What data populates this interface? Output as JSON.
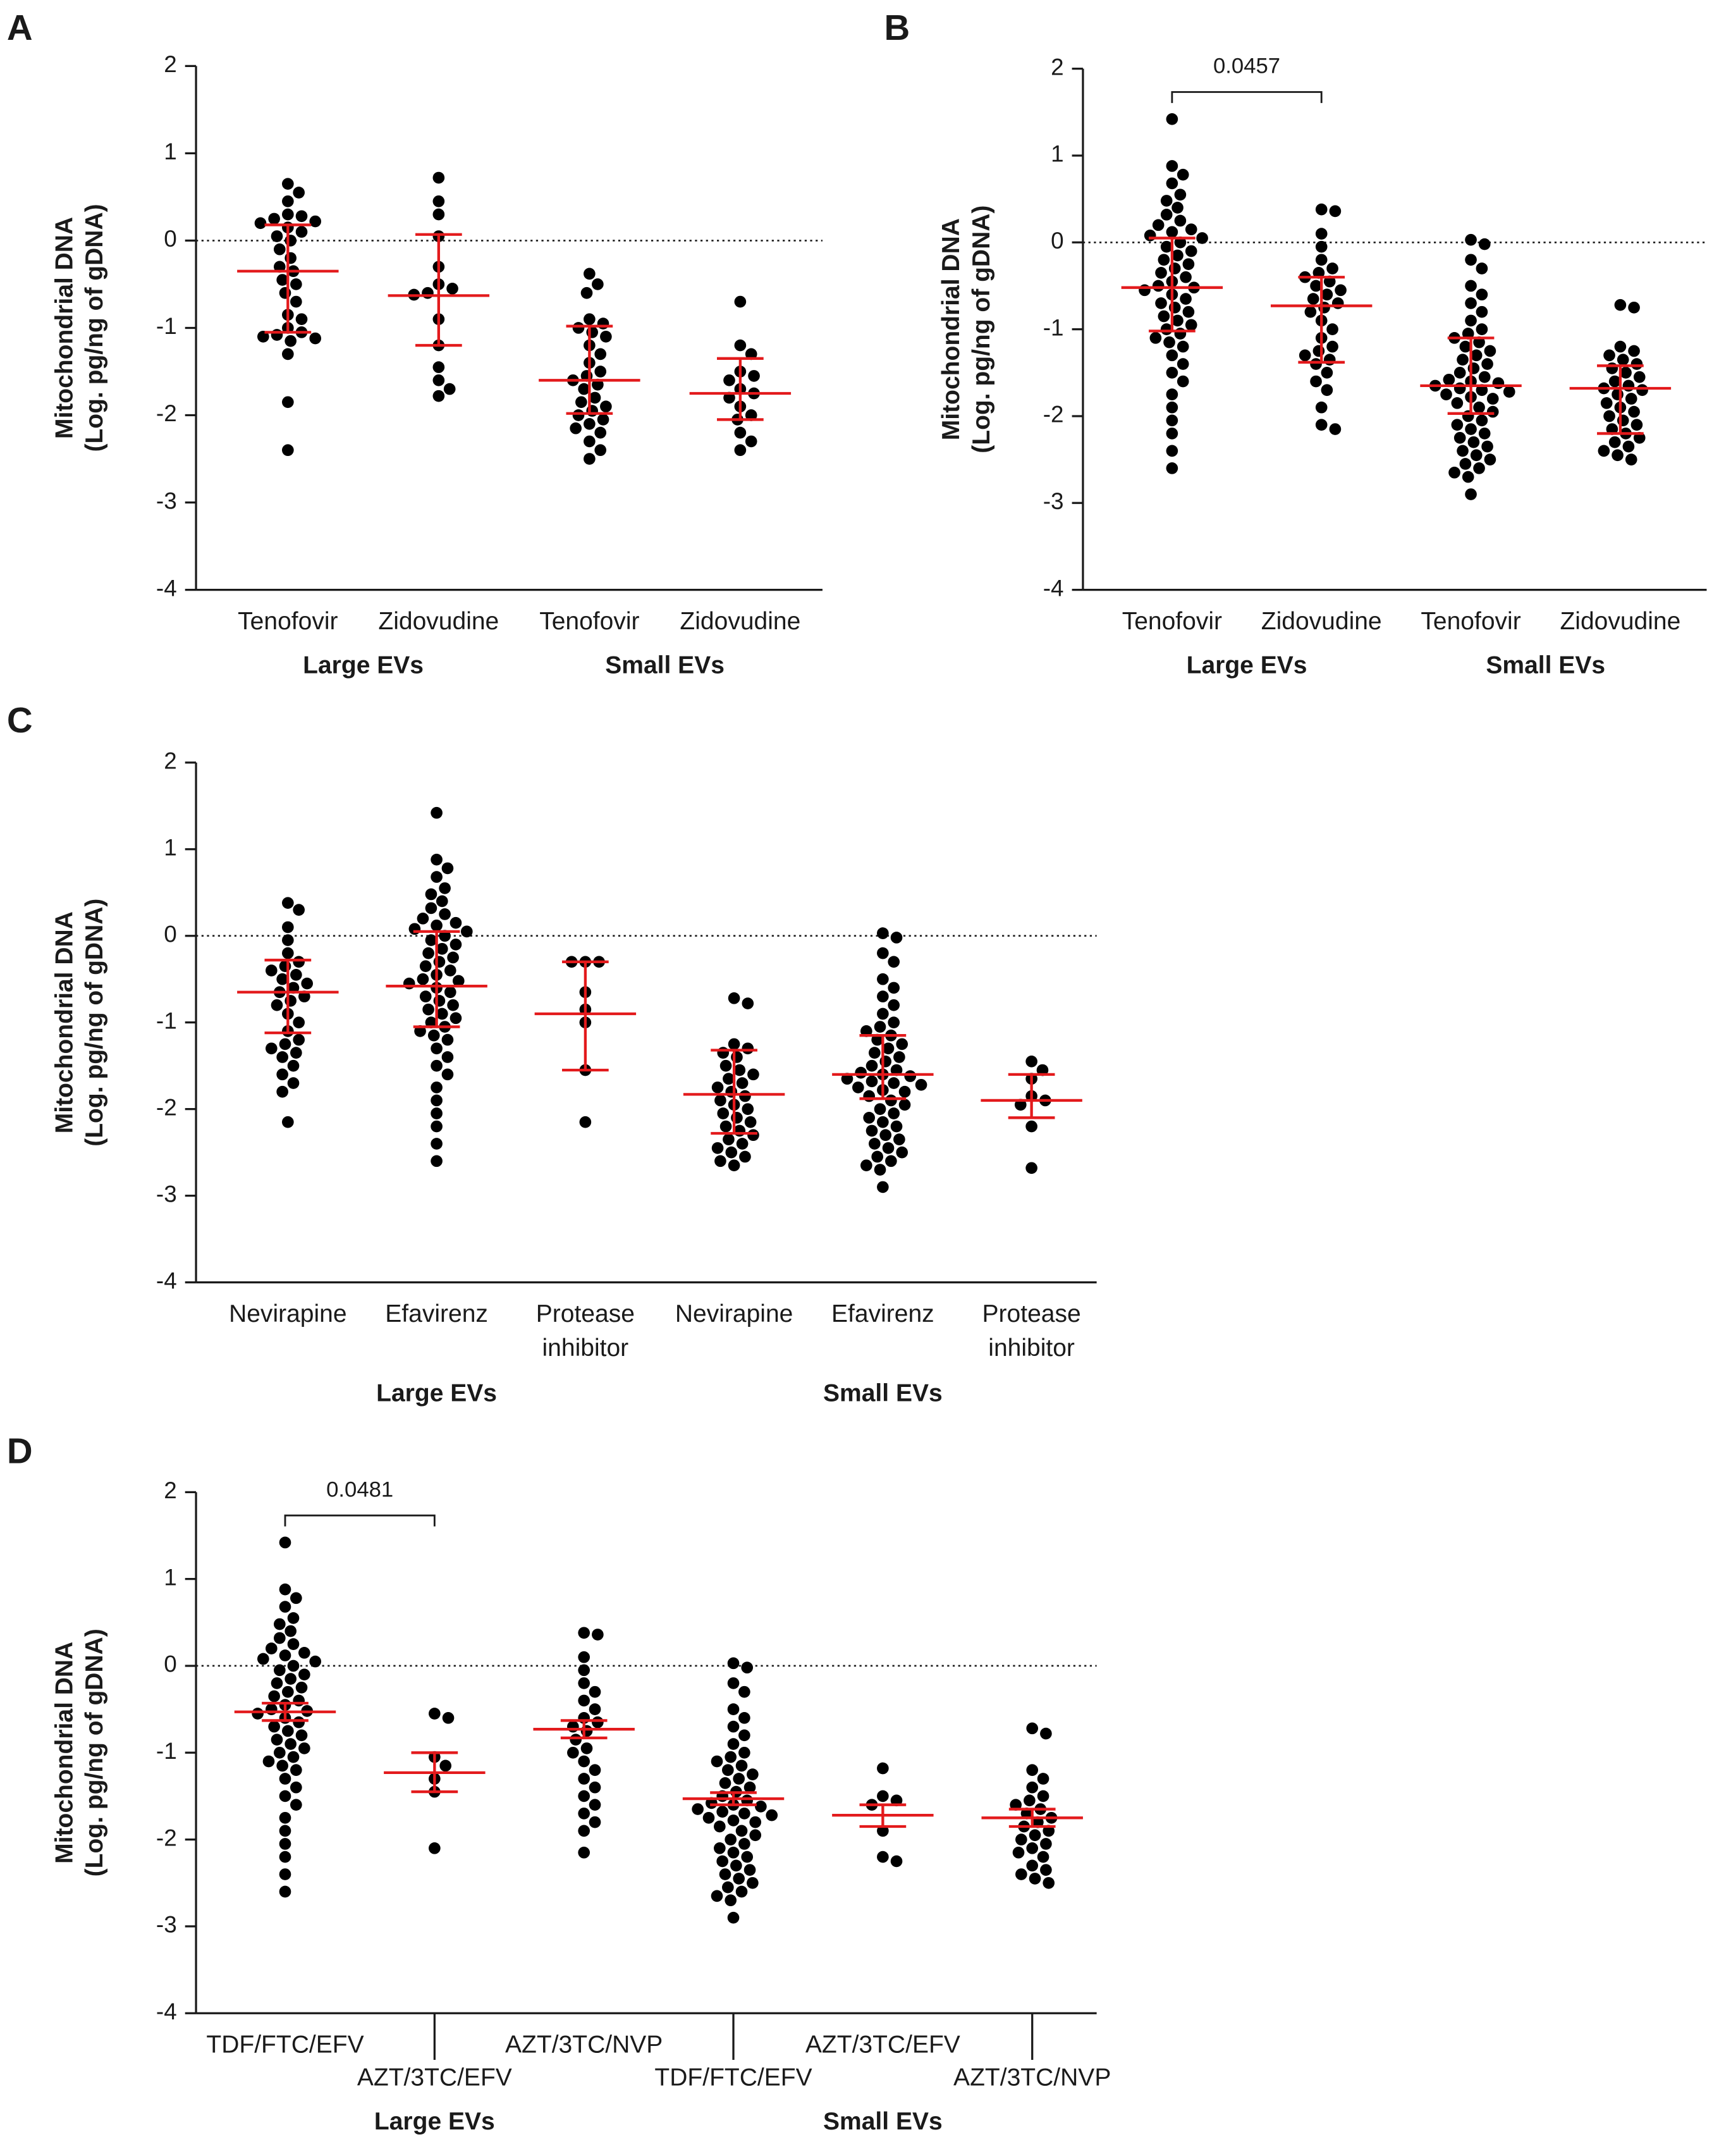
{
  "chart_data": [
    {
      "type": "dot",
      "panel": "A",
      "y_label": [
        "Mitochondrial DNA",
        "(Log. pg/ng of gDNA)"
      ],
      "ylim": [
        -4,
        2
      ],
      "yticks": [
        -4,
        -3,
        -2,
        -1,
        0,
        1,
        2
      ],
      "reference_line": 0,
      "categories": [
        "Tenofovir",
        "Zidovudine",
        "Tenofovir",
        "Zidovudine"
      ],
      "groups": [
        "Large EVs",
        "Small EVs"
      ],
      "dot_color": "#000000",
      "summary_color": "#e31a1c",
      "points": [
        [
          0.65,
          0.55,
          0.45,
          0.3,
          0.28,
          0.25,
          0.22,
          0.2,
          0.15,
          0.1,
          0.05,
          0.0,
          -0.1,
          -0.2,
          -0.3,
          -0.35,
          -0.45,
          -0.5,
          -0.6,
          -0.7,
          -0.85,
          -0.9,
          -1.0,
          -1.05,
          -1.08,
          -1.1,
          -1.12,
          -1.15,
          -1.3,
          -1.85,
          -2.4
        ],
        [
          0.72,
          0.45,
          0.3,
          0.05,
          -0.3,
          -0.5,
          -0.55,
          -0.6,
          -0.62,
          -0.9,
          -1.2,
          -1.45,
          -1.6,
          -1.7,
          -1.78
        ],
        [
          -0.38,
          -0.5,
          -0.6,
          -0.9,
          -0.95,
          -1.0,
          -1.05,
          -1.1,
          -1.2,
          -1.3,
          -1.4,
          -1.5,
          -1.55,
          -1.6,
          -1.65,
          -1.7,
          -1.8,
          -1.85,
          -1.9,
          -1.95,
          -2.0,
          -2.05,
          -2.1,
          -2.15,
          -2.2,
          -2.3,
          -2.4,
          -2.5
        ],
        [
          -0.7,
          -1.2,
          -1.3,
          -1.5,
          -1.55,
          -1.6,
          -1.7,
          -1.75,
          -1.8,
          -1.9,
          -2.0,
          -2.05,
          -2.2,
          -2.3,
          -2.4
        ]
      ],
      "center": [
        -0.35,
        -0.63,
        -1.6,
        -1.75
      ],
      "error_low": [
        -1.05,
        -1.2,
        -1.98,
        -2.05
      ],
      "error_high": [
        0.18,
        0.07,
        -0.98,
        -1.35
      ]
    },
    {
      "type": "dot",
      "panel": "B",
      "y_label": [
        "Mitochondrial DNA",
        "(Log. pg/ng of gDNA)"
      ],
      "ylim": [
        -4,
        2
      ],
      "yticks": [
        -4,
        -3,
        -2,
        -1,
        0,
        1,
        2
      ],
      "reference_line": 0,
      "categories": [
        "Tenofovir",
        "Zidovudine",
        "Tenofovir",
        "Zidovudine"
      ],
      "groups": [
        "Large EVs",
        "Small EVs"
      ],
      "dot_color": "#000000",
      "summary_color": "#e31a1c",
      "annotation": {
        "text": "0.0457",
        "between": [
          0,
          1
        ]
      },
      "points": [
        [
          1.42,
          0.88,
          0.78,
          0.68,
          0.55,
          0.48,
          0.4,
          0.32,
          0.25,
          0.2,
          0.15,
          0.12,
          0.08,
          0.05,
          0.0,
          -0.05,
          -0.1,
          -0.15,
          -0.2,
          -0.25,
          -0.3,
          -0.35,
          -0.4,
          -0.45,
          -0.5,
          -0.52,
          -0.55,
          -0.6,
          -0.65,
          -0.7,
          -0.75,
          -0.8,
          -0.85,
          -0.9,
          -0.95,
          -1.0,
          -1.05,
          -1.1,
          -1.15,
          -1.2,
          -1.3,
          -1.4,
          -1.5,
          -1.6,
          -1.75,
          -1.9,
          -2.05,
          -2.2,
          -2.4,
          -2.6
        ],
        [
          0.38,
          0.36,
          0.1,
          -0.05,
          -0.2,
          -0.3,
          -0.35,
          -0.4,
          -0.45,
          -0.5,
          -0.55,
          -0.6,
          -0.65,
          -0.7,
          -0.75,
          -0.8,
          -0.9,
          -1.0,
          -1.1,
          -1.2,
          -1.25,
          -1.3,
          -1.35,
          -1.4,
          -1.5,
          -1.6,
          -1.7,
          -1.9,
          -2.1,
          -2.15
        ],
        [
          0.03,
          -0.02,
          -0.2,
          -0.3,
          -0.5,
          -0.6,
          -0.7,
          -0.8,
          -0.9,
          -1.0,
          -1.05,
          -1.1,
          -1.15,
          -1.2,
          -1.25,
          -1.3,
          -1.35,
          -1.4,
          -1.45,
          -1.5,
          -1.55,
          -1.6,
          -1.62,
          -1.65,
          -1.68,
          -1.7,
          -1.75,
          -1.8,
          -1.85,
          -1.9,
          -1.95,
          -2.0,
          -2.05,
          -2.1,
          -2.15,
          -2.2,
          -2.25,
          -2.3,
          -2.35,
          -2.4,
          -2.45,
          -2.5,
          -2.55,
          -2.6,
          -2.65,
          -2.7,
          -2.9,
          -1.72,
          -1.58,
          -1.78
        ],
        [
          -0.72,
          -0.75,
          -1.2,
          -1.25,
          -1.3,
          -1.35,
          -1.4,
          -1.45,
          -1.5,
          -1.55,
          -1.6,
          -1.65,
          -1.7,
          -1.75,
          -1.8,
          -1.85,
          -1.9,
          -1.95,
          -2.0,
          -2.05,
          -2.1,
          -2.15,
          -2.2,
          -2.25,
          -2.3,
          -2.35,
          -2.4,
          -2.45,
          -2.5,
          -1.68
        ]
      ],
      "center": [
        -0.52,
        -0.73,
        -1.65,
        -1.68
      ],
      "error_low": [
        -1.02,
        -1.38,
        -1.97,
        -2.2
      ],
      "error_high": [
        0.05,
        -0.4,
        -1.1,
        -1.42
      ]
    },
    {
      "type": "dot",
      "panel": "C",
      "y_label": [
        "Mitochondrial DNA",
        "(Log. pg/ng of gDNA)"
      ],
      "ylim": [
        -4,
        2
      ],
      "yticks": [
        -4,
        -3,
        -2,
        -1,
        0,
        1,
        2
      ],
      "reference_line": 0,
      "categories": [
        [
          "Nevirapine"
        ],
        [
          "Efavirenz"
        ],
        [
          "Protease",
          "inhibitor"
        ],
        [
          "Nevirapine"
        ],
        [
          "Efavirenz"
        ],
        [
          "Protease",
          "inhibitor"
        ]
      ],
      "groups": [
        "Large EVs",
        "Small EVs"
      ],
      "dot_color": "#000000",
      "summary_color": "#e31a1c",
      "points": [
        [
          0.38,
          0.3,
          0.1,
          -0.05,
          -0.2,
          -0.3,
          -0.35,
          -0.4,
          -0.45,
          -0.5,
          -0.55,
          -0.6,
          -0.65,
          -0.7,
          -0.75,
          -0.8,
          -0.9,
          -1.0,
          -1.1,
          -1.2,
          -1.25,
          -1.3,
          -1.35,
          -1.4,
          -1.5,
          -1.6,
          -1.7,
          -1.8,
          -2.15
        ],
        [
          1.42,
          0.88,
          0.78,
          0.68,
          0.55,
          0.48,
          0.4,
          0.32,
          0.25,
          0.2,
          0.15,
          0.12,
          0.08,
          0.05,
          0.0,
          -0.05,
          -0.1,
          -0.15,
          -0.2,
          -0.25,
          -0.3,
          -0.35,
          -0.4,
          -0.45,
          -0.5,
          -0.52,
          -0.55,
          -0.6,
          -0.65,
          -0.7,
          -0.75,
          -0.8,
          -0.85,
          -0.9,
          -0.95,
          -1.0,
          -1.05,
          -1.1,
          -1.15,
          -1.2,
          -1.3,
          -1.4,
          -1.5,
          -1.6,
          -1.75,
          -1.9,
          -2.05,
          -2.2,
          -2.4,
          -2.6
        ],
        [
          -0.3,
          -0.3,
          -0.3,
          -0.65,
          -0.85,
          -1.0,
          -1.55,
          -2.15
        ],
        [
          -0.72,
          -0.78,
          -1.25,
          -1.3,
          -1.35,
          -1.4,
          -1.5,
          -1.55,
          -1.6,
          -1.65,
          -1.7,
          -1.8,
          -1.85,
          -1.9,
          -1.95,
          -2.0,
          -2.05,
          -2.1,
          -2.15,
          -2.2,
          -2.25,
          -2.3,
          -2.35,
          -2.4,
          -2.45,
          -2.5,
          -2.55,
          -2.6,
          -2.65,
          -1.75
        ],
        [
          0.03,
          -0.02,
          -0.2,
          -0.3,
          -0.5,
          -0.6,
          -0.7,
          -0.8,
          -0.9,
          -1.0,
          -1.05,
          -1.1,
          -1.15,
          -1.2,
          -1.25,
          -1.3,
          -1.35,
          -1.4,
          -1.45,
          -1.5,
          -1.55,
          -1.6,
          -1.62,
          -1.65,
          -1.68,
          -1.7,
          -1.75,
          -1.8,
          -1.85,
          -1.9,
          -1.95,
          -2.0,
          -2.05,
          -2.1,
          -2.15,
          -2.2,
          -2.25,
          -2.3,
          -2.35,
          -2.4,
          -2.45,
          -2.5,
          -2.55,
          -2.6,
          -2.65,
          -2.7,
          -2.9,
          -1.72,
          -1.58,
          -1.78
        ],
        [
          -1.45,
          -1.55,
          -1.65,
          -1.85,
          -1.9,
          -1.95,
          -2.2,
          -2.68
        ]
      ],
      "center": [
        -0.65,
        -0.58,
        -0.9,
        -1.83,
        -1.6,
        -1.9
      ],
      "error_low": [
        -1.12,
        -1.05,
        -1.55,
        -2.28,
        -1.88,
        -2.1
      ],
      "error_high": [
        -0.28,
        0.05,
        -0.3,
        -1.32,
        -1.15,
        -1.6
      ]
    },
    {
      "type": "dot",
      "panel": "D",
      "y_label": [
        "Mitochondrial DNA",
        "(Log. pg/ng of gDNA)"
      ],
      "ylim": [
        -4,
        2
      ],
      "yticks": [
        -4,
        -3,
        -2,
        -1,
        0,
        1,
        2
      ],
      "reference_line": 0,
      "categories": [
        "TDF/FTC/EFV",
        "AZT/3TC/EFV",
        "AZT/3TC/NVP",
        "TDF/FTC/EFV",
        "AZT/3TC/EFV",
        "AZT/3TC/NVP"
      ],
      "groups": [
        "Large EVs",
        "Small EVs"
      ],
      "stagger_labels": true,
      "dot_color": "#000000",
      "summary_color": "#e31a1c",
      "annotation": {
        "text": "0.0481",
        "between": [
          0,
          1
        ]
      },
      "points": [
        [
          1.42,
          0.88,
          0.78,
          0.68,
          0.55,
          0.48,
          0.4,
          0.32,
          0.25,
          0.2,
          0.15,
          0.12,
          0.08,
          0.05,
          0.0,
          -0.05,
          -0.1,
          -0.15,
          -0.2,
          -0.25,
          -0.3,
          -0.35,
          -0.4,
          -0.45,
          -0.5,
          -0.52,
          -0.55,
          -0.6,
          -0.65,
          -0.7,
          -0.75,
          -0.8,
          -0.85,
          -0.9,
          -0.95,
          -1.0,
          -1.05,
          -1.1,
          -1.15,
          -1.2,
          -1.3,
          -1.4,
          -1.5,
          -1.6,
          -1.75,
          -1.9,
          -2.05,
          -2.2,
          -2.4,
          -2.6
        ],
        [
          -0.55,
          -0.6,
          -1.05,
          -1.15,
          -1.3,
          -1.45,
          -2.1
        ],
        [
          0.38,
          0.36,
          0.1,
          -0.05,
          -0.2,
          -0.3,
          -0.4,
          -0.5,
          -0.6,
          -0.65,
          -0.7,
          -0.75,
          -0.85,
          -0.95,
          -1.0,
          -1.1,
          -1.2,
          -1.3,
          -1.4,
          -1.5,
          -1.6,
          -1.7,
          -1.8,
          -1.9,
          -2.15
        ],
        [
          0.03,
          -0.02,
          -0.2,
          -0.3,
          -0.5,
          -0.6,
          -0.7,
          -0.8,
          -0.9,
          -1.0,
          -1.05,
          -1.1,
          -1.15,
          -1.2,
          -1.25,
          -1.3,
          -1.35,
          -1.4,
          -1.45,
          -1.5,
          -1.55,
          -1.6,
          -1.62,
          -1.65,
          -1.68,
          -1.7,
          -1.75,
          -1.8,
          -1.85,
          -1.9,
          -1.95,
          -2.0,
          -2.05,
          -2.1,
          -2.15,
          -2.2,
          -2.25,
          -2.3,
          -2.35,
          -2.4,
          -2.45,
          -2.5,
          -2.55,
          -2.6,
          -2.65,
          -2.7,
          -2.9,
          -1.72,
          -1.58,
          -1.78
        ],
        [
          -1.18,
          -1.5,
          -1.55,
          -1.6,
          -1.9,
          -2.2,
          -2.25
        ],
        [
          -0.72,
          -0.78,
          -1.2,
          -1.3,
          -1.4,
          -1.5,
          -1.55,
          -1.6,
          -1.65,
          -1.7,
          -1.75,
          -1.8,
          -1.85,
          -1.9,
          -1.95,
          -2.0,
          -2.05,
          -2.1,
          -2.15,
          -2.2,
          -2.3,
          -2.35,
          -2.4,
          -2.45,
          -2.5
        ]
      ],
      "center": [
        -0.53,
        -1.23,
        -0.73,
        -1.53,
        -1.72,
        -1.75
      ],
      "error_low": [
        -0.63,
        -1.45,
        -0.83,
        -1.6,
        -1.85,
        -1.85
      ],
      "error_high": [
        -0.43,
        -1.0,
        -0.63,
        -1.46,
        -1.6,
        -1.65
      ]
    }
  ]
}
